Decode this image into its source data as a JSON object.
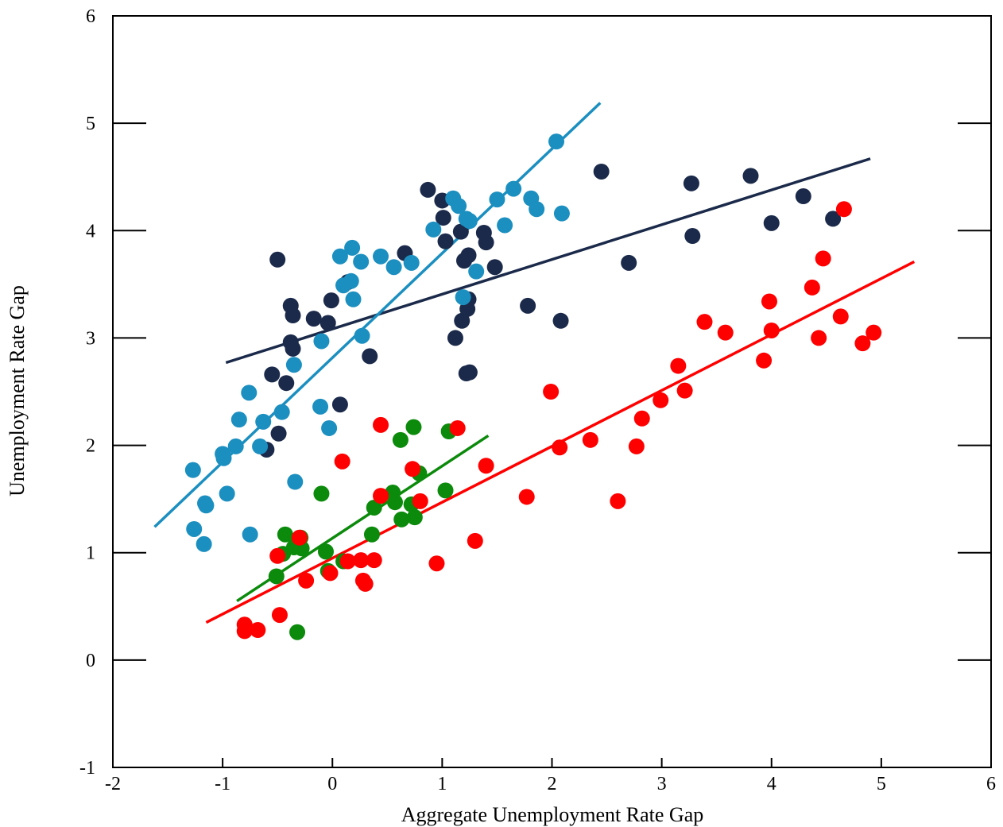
{
  "chart_data": {
    "type": "scatter",
    "title": "",
    "xlabel": "Aggregate Unemployment Rate Gap",
    "ylabel": "Unemployment Rate Gap",
    "xlim": [
      -2,
      6
    ],
    "ylim": [
      -1,
      6
    ],
    "xticks": [
      -2,
      -1,
      0,
      1,
      2,
      3,
      4,
      5,
      6
    ],
    "yticks": [
      -1,
      0,
      1,
      2,
      3,
      4,
      5,
      6
    ],
    "grid": false,
    "legend": "none",
    "series": [
      {
        "color": "#1b2a4a",
        "points": [
          [
            -0.5,
            3.73
          ],
          [
            -0.38,
            3.3
          ],
          [
            -0.36,
            3.21
          ],
          [
            -0.38,
            2.96
          ],
          [
            -0.36,
            2.9
          ],
          [
            -0.55,
            2.66
          ],
          [
            -0.42,
            2.58
          ],
          [
            -0.49,
            2.11
          ],
          [
            -0.6,
            1.96
          ],
          [
            -0.17,
            3.18
          ],
          [
            -0.04,
            3.14
          ],
          [
            -0.01,
            3.35
          ],
          [
            0.07,
            2.38
          ],
          [
            0.14,
            3.52
          ],
          [
            0.34,
            2.83
          ],
          [
            0.66,
            3.79
          ],
          [
            0.87,
            4.38
          ],
          [
            1.0,
            4.28
          ],
          [
            1.01,
            4.12
          ],
          [
            1.03,
            3.9
          ],
          [
            1.17,
            3.99
          ],
          [
            1.2,
            3.72
          ],
          [
            1.24,
            3.77
          ],
          [
            1.24,
            3.36
          ],
          [
            1.23,
            3.27
          ],
          [
            1.18,
            3.16
          ],
          [
            1.12,
            3.0
          ],
          [
            1.22,
            2.67
          ],
          [
            1.25,
            2.68
          ],
          [
            1.38,
            3.98
          ],
          [
            1.4,
            3.89
          ],
          [
            1.48,
            3.66
          ],
          [
            1.78,
            3.3
          ],
          [
            2.08,
            3.16
          ],
          [
            2.45,
            4.55
          ],
          [
            2.7,
            3.7
          ],
          [
            3.27,
            4.44
          ],
          [
            3.28,
            3.95
          ],
          [
            3.81,
            4.51
          ],
          [
            4.0,
            4.07
          ],
          [
            4.29,
            4.32
          ],
          [
            4.56,
            4.11
          ]
        ],
        "fit": [
          [
            -0.97,
            2.77
          ],
          [
            4.9,
            4.67
          ]
        ]
      },
      {
        "color": "#1b8fc0",
        "points": [
          [
            -1.27,
            1.77
          ],
          [
            -1.26,
            1.22
          ],
          [
            -1.16,
            1.46
          ],
          [
            -1.15,
            1.44
          ],
          [
            -1.17,
            1.08
          ],
          [
            -1.0,
            1.92
          ],
          [
            -0.99,
            1.88
          ],
          [
            -0.96,
            1.55
          ],
          [
            -0.88,
            1.99
          ],
          [
            -0.85,
            2.24
          ],
          [
            -0.76,
            2.49
          ],
          [
            -0.75,
            1.17
          ],
          [
            -0.66,
            1.99
          ],
          [
            -0.63,
            2.22
          ],
          [
            -0.46,
            2.31
          ],
          [
            -0.35,
            2.75
          ],
          [
            -0.34,
            1.66
          ],
          [
            -0.1,
            2.97
          ],
          [
            -0.11,
            2.36
          ],
          [
            -0.03,
            2.16
          ],
          [
            0.07,
            3.76
          ],
          [
            0.1,
            3.49
          ],
          [
            0.17,
            3.53
          ],
          [
            0.18,
            3.84
          ],
          [
            0.19,
            3.36
          ],
          [
            0.26,
            3.71
          ],
          [
            0.27,
            3.02
          ],
          [
            0.44,
            3.76
          ],
          [
            0.56,
            3.66
          ],
          [
            0.72,
            3.7
          ],
          [
            0.92,
            4.01
          ],
          [
            1.1,
            4.3
          ],
          [
            1.15,
            4.23
          ],
          [
            1.22,
            4.11
          ],
          [
            1.25,
            4.09
          ],
          [
            1.19,
            3.38
          ],
          [
            1.31,
            3.62
          ],
          [
            1.5,
            4.29
          ],
          [
            1.57,
            4.05
          ],
          [
            1.65,
            4.39
          ],
          [
            1.81,
            4.3
          ],
          [
            1.86,
            4.2
          ],
          [
            2.04,
            4.83
          ],
          [
            2.09,
            4.16
          ]
        ],
        "fit": [
          [
            -1.62,
            1.24
          ],
          [
            2.44,
            5.19
          ]
        ]
      },
      {
        "color": "#0b8a0b",
        "points": [
          [
            -0.51,
            0.78
          ],
          [
            -0.45,
            0.99
          ],
          [
            -0.43,
            1.17
          ],
          [
            -0.35,
            1.05
          ],
          [
            -0.32,
            1.12
          ],
          [
            -0.29,
            1.14
          ],
          [
            -0.28,
            1.04
          ],
          [
            -0.32,
            0.26
          ],
          [
            -0.1,
            1.55
          ],
          [
            -0.06,
            1.01
          ],
          [
            -0.04,
            0.83
          ],
          [
            0.1,
            0.92
          ],
          [
            0.36,
            1.17
          ],
          [
            0.38,
            1.42
          ],
          [
            0.55,
            1.56
          ],
          [
            0.57,
            1.47
          ],
          [
            0.62,
            2.05
          ],
          [
            0.63,
            1.31
          ],
          [
            0.72,
            1.45
          ],
          [
            0.74,
            2.17
          ],
          [
            0.75,
            1.33
          ],
          [
            0.79,
            1.74
          ],
          [
            1.03,
            1.58
          ],
          [
            1.06,
            2.13
          ]
        ],
        "fit": [
          [
            -0.87,
            0.55
          ],
          [
            1.42,
            2.09
          ]
        ]
      },
      {
        "color": "#ff0000",
        "points": [
          [
            -0.8,
            0.33
          ],
          [
            -0.8,
            0.27
          ],
          [
            -0.68,
            0.28
          ],
          [
            -0.5,
            0.97
          ],
          [
            -0.48,
            0.42
          ],
          [
            -0.3,
            1.14
          ],
          [
            -0.24,
            0.74
          ],
          [
            -0.02,
            0.81
          ],
          [
            0.09,
            1.85
          ],
          [
            0.14,
            0.92
          ],
          [
            0.26,
            0.93
          ],
          [
            0.28,
            0.74
          ],
          [
            0.3,
            0.71
          ],
          [
            0.38,
            0.93
          ],
          [
            0.44,
            1.53
          ],
          [
            0.44,
            2.19
          ],
          [
            0.73,
            1.78
          ],
          [
            0.8,
            1.48
          ],
          [
            0.95,
            0.9
          ],
          [
            1.14,
            2.16
          ],
          [
            1.3,
            1.11
          ],
          [
            1.4,
            1.81
          ],
          [
            1.77,
            1.52
          ],
          [
            1.99,
            2.5
          ],
          [
            2.07,
            1.98
          ],
          [
            2.35,
            2.05
          ],
          [
            2.6,
            1.48
          ],
          [
            2.77,
            1.99
          ],
          [
            2.82,
            2.25
          ],
          [
            2.99,
            2.42
          ],
          [
            3.15,
            2.74
          ],
          [
            3.21,
            2.51
          ],
          [
            3.39,
            3.15
          ],
          [
            3.58,
            3.05
          ],
          [
            3.93,
            2.79
          ],
          [
            3.98,
            3.34
          ],
          [
            4.0,
            3.07
          ],
          [
            4.37,
            3.47
          ],
          [
            4.43,
            3.0
          ],
          [
            4.47,
            3.74
          ],
          [
            4.63,
            3.2
          ],
          [
            4.66,
            4.2
          ],
          [
            4.83,
            2.95
          ],
          [
            4.93,
            3.05
          ]
        ],
        "fit": [
          [
            -1.15,
            0.35
          ],
          [
            5.3,
            3.71
          ]
        ]
      }
    ]
  }
}
